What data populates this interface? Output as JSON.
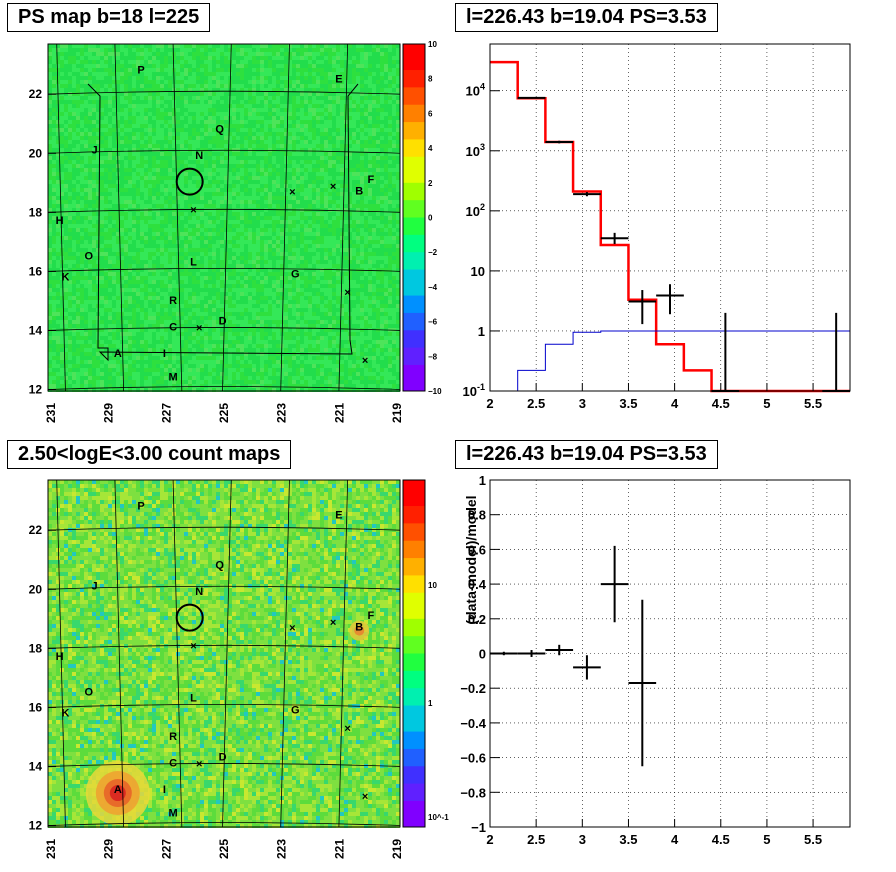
{
  "panels": {
    "ps_map_title": "PS map b=18 l=225",
    "spectrum_title": "l=226.43 b=19.04 PS=3.53",
    "count_map_title": "2.50<logE<3.00 count maps",
    "residual_title": "l=226.43 b=19.04 PS=3.53"
  },
  "colors": {
    "map_background": "#22e04a",
    "model_line": "#ff0000",
    "background_line": "#0000cc",
    "data": "#000000",
    "source_A": "#d02020"
  },
  "chart_data": [
    {
      "type": "heatmap",
      "title": "PS map b=18 l=225",
      "x_ticks": [
        "231",
        "229",
        "227",
        "225",
        "223",
        "221",
        "219"
      ],
      "y_ticks": [
        "12",
        "14",
        "16",
        "18",
        "20",
        "22"
      ],
      "xlim": [
        231,
        219
      ],
      "ylim": [
        12,
        23.6
      ],
      "colorbar": {
        "min": -10,
        "max": 10,
        "ticks": [
          "10",
          "8",
          "6",
          "4",
          "2",
          "0",
          "−2",
          "−4",
          "−6",
          "−8",
          "−10"
        ]
      },
      "sources": [
        {
          "label": "A",
          "l": 228.9,
          "b": 13.1
        },
        {
          "label": "B",
          "l": 220.6,
          "b": 18.6
        },
        {
          "label": "C",
          "l": 227.0,
          "b": 14.0
        },
        {
          "label": "D",
          "l": 225.3,
          "b": 14.2
        },
        {
          "label": "E",
          "l": 221.3,
          "b": 22.4
        },
        {
          "label": "F",
          "l": 220.2,
          "b": 19.0
        },
        {
          "label": "G",
          "l": 222.8,
          "b": 15.8
        },
        {
          "label": "H",
          "l": 230.9,
          "b": 17.6
        },
        {
          "label": "I",
          "l": 227.3,
          "b": 13.1
        },
        {
          "label": "J",
          "l": 229.7,
          "b": 20.0
        },
        {
          "label": "K",
          "l": 230.7,
          "b": 15.7
        },
        {
          "label": "L",
          "l": 226.3,
          "b": 16.2
        },
        {
          "label": "M",
          "l": 227.0,
          "b": 12.3
        },
        {
          "label": "N",
          "l": 226.1,
          "b": 19.8
        },
        {
          "label": "O",
          "l": 229.9,
          "b": 16.4
        },
        {
          "label": "P",
          "l": 228.1,
          "b": 22.7
        },
        {
          "label": "Q",
          "l": 225.4,
          "b": 20.7
        },
        {
          "label": "R",
          "l": 227.0,
          "b": 14.9
        }
      ],
      "circle": {
        "l": 226.43,
        "b": 19.04
      }
    },
    {
      "type": "line",
      "title": "l=226.43 b=19.04 PS=3.53",
      "xlim": [
        2,
        5.9
      ],
      "ylim": [
        0.1,
        60000
      ],
      "yscale": "log",
      "x_ticks": [
        "2",
        "2.5",
        "3",
        "3.5",
        "4",
        "4.5",
        "5",
        "5.5"
      ],
      "y_ticks": [
        "10^4",
        "10^3",
        "10^2",
        "10",
        "1",
        "10^-1"
      ],
      "series": [
        {
          "style": "step",
          "edges": [
            2.0,
            2.3,
            2.6,
            2.9,
            3.2,
            3.5,
            3.8,
            4.1,
            4.4,
            5.9
          ],
          "values": [
            30000,
            7500,
            1400,
            210,
            27,
            3.3,
            0.6,
            0.22,
            0.1
          ]
        },
        {
          "style": "step",
          "edges": [
            2.3,
            2.6,
            2.9,
            3.2,
            5.9
          ],
          "values": [
            0.22,
            0.6,
            0.95,
            1.0
          ]
        },
        {
          "style": "errorbar",
          "x": [
            2.45,
            2.75,
            3.05,
            3.35,
            3.65,
            3.95,
            4.55,
            5.75
          ],
          "xerr": [
            0.15,
            0.15,
            0.15,
            0.15,
            0.15,
            0.15,
            0.15,
            0.15
          ],
          "y": [
            7600,
            1400,
            190,
            35,
            3.1,
            3.9,
            0.1,
            0.1
          ],
          "ylow": [
            7400,
            1330,
            175,
            28,
            1.3,
            1.9,
            0.1,
            0.1
          ],
          "yhigh": [
            7800,
            1470,
            205,
            43,
            4.8,
            6.0,
            2.0,
            2.0
          ]
        }
      ]
    },
    {
      "type": "heatmap",
      "title": "2.50<logE<3.00 count maps",
      "x_ticks": [
        "231",
        "229",
        "227",
        "225",
        "223",
        "221",
        "219"
      ],
      "y_ticks": [
        "12",
        "14",
        "16",
        "18",
        "20",
        "22"
      ],
      "colorbar": {
        "scale": "log",
        "ticks": [
          "10",
          "1",
          "10^-1"
        ]
      }
    },
    {
      "type": "scatter",
      "title": "l=226.43 b=19.04 PS=3.53",
      "ylabel": "(data-model)/model",
      "xlim": [
        2,
        5.9
      ],
      "ylim": [
        -1,
        1
      ],
      "x_ticks": [
        "2",
        "2.5",
        "3",
        "3.5",
        "4",
        "4.5",
        "5",
        "5.5"
      ],
      "y_ticks": [
        "1",
        "0.8",
        "0.6",
        "0.4",
        "0.2",
        "0",
        "−0.2",
        "−0.4",
        "−0.6",
        "−0.8",
        "−1"
      ],
      "grid": true,
      "points": {
        "x": [
          2.15,
          2.45,
          2.75,
          3.05,
          3.35,
          3.65
        ],
        "xerr": [
          0.15,
          0.15,
          0.15,
          0.15,
          0.15,
          0.15
        ],
        "y": [
          0.0,
          0.0,
          0.02,
          -0.08,
          0.4,
          -0.17
        ],
        "yerr": [
          0.01,
          0.02,
          0.03,
          0.07,
          0.22,
          0.48
        ]
      }
    }
  ]
}
